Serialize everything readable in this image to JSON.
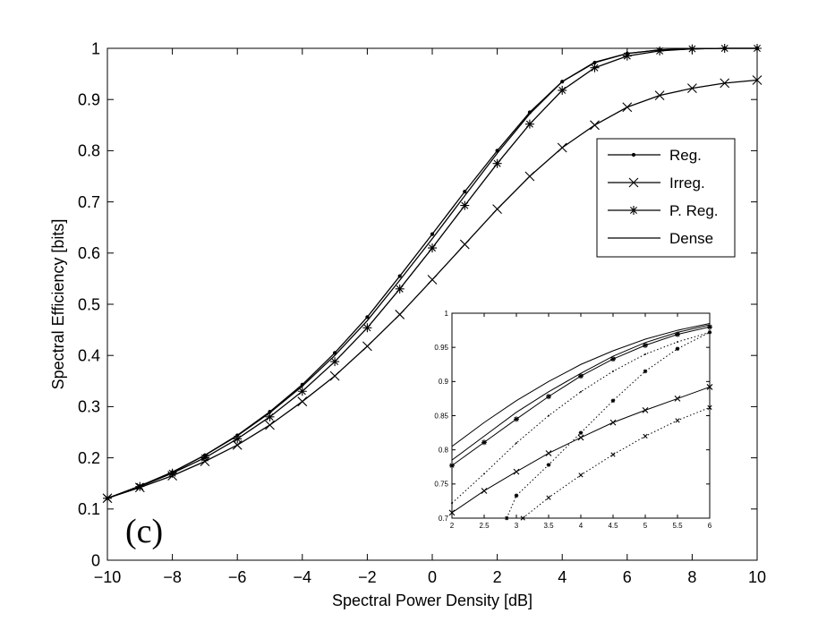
{
  "chart_data": [
    {
      "type": "line",
      "xlabel": "Spectral Power Density [dB]",
      "ylabel": "Spectral Efficiency [bits]",
      "xlim": [
        -10,
        10
      ],
      "ylim": [
        0,
        1
      ],
      "xticks": [
        -10,
        -8,
        -6,
        -4,
        -2,
        0,
        2,
        4,
        6,
        8,
        10
      ],
      "yticks": [
        0,
        0.1,
        0.2,
        0.3,
        0.4,
        0.5,
        0.6,
        0.7,
        0.8,
        0.9,
        1
      ],
      "xtick_labels": [
        "−10",
        "−8",
        "−6",
        "−4",
        "−2",
        "0",
        "2",
        "4",
        "6",
        "8",
        "10"
      ],
      "ytick_labels": [
        "0",
        "0.1",
        "0.2",
        "0.3",
        "0.4",
        "0.5",
        "0.6",
        "0.7",
        "0.8",
        "0.9",
        "1"
      ],
      "grid": false,
      "legend_position": "top-right",
      "annotation": "(c)",
      "series": [
        {
          "name": "Reg.",
          "marker": "dot",
          "x": [
            -10,
            -9,
            -8,
            -7,
            -6,
            -5,
            -4,
            -3,
            -2,
            -1,
            0,
            1,
            2,
            3,
            4,
            5,
            6,
            7,
            8,
            9,
            10
          ],
          "y": [
            0.121,
            0.145,
            0.172,
            0.205,
            0.244,
            0.29,
            0.343,
            0.405,
            0.475,
            0.555,
            0.637,
            0.72,
            0.8,
            0.875,
            0.935,
            0.972,
            0.99,
            0.997,
            0.999,
            1.0,
            1.0
          ]
        },
        {
          "name": "Irreg.",
          "marker": "x",
          "x": [
            -10,
            -9,
            -8,
            -7,
            -6,
            -5,
            -4,
            -3,
            -2,
            -1,
            0,
            1,
            2,
            3,
            4,
            5,
            6,
            7,
            8,
            9,
            10
          ],
          "y": [
            0.121,
            0.142,
            0.165,
            0.193,
            0.225,
            0.264,
            0.31,
            0.36,
            0.418,
            0.48,
            0.548,
            0.617,
            0.686,
            0.75,
            0.806,
            0.85,
            0.885,
            0.908,
            0.922,
            0.932,
            0.938
          ]
        },
        {
          "name": "P. Reg.",
          "marker": "star",
          "x": [
            -10,
            -9,
            -8,
            -7,
            -6,
            -5,
            -4,
            -3,
            -2,
            -1,
            0,
            1,
            2,
            3,
            4,
            5,
            6,
            7,
            8,
            9,
            10
          ],
          "y": [
            0.121,
            0.144,
            0.17,
            0.2,
            0.237,
            0.28,
            0.33,
            0.388,
            0.454,
            0.53,
            0.61,
            0.693,
            0.775,
            0.852,
            0.918,
            0.962,
            0.985,
            0.995,
            0.999,
            1.0,
            1.0
          ]
        },
        {
          "name": "Dense",
          "marker": "none",
          "x": [
            -10,
            -9,
            -8,
            -7,
            -6,
            -5,
            -4,
            -3,
            -2,
            -1,
            0,
            1,
            2,
            3,
            4,
            5,
            6,
            7,
            8,
            9,
            10
          ],
          "y": [
            0.121,
            0.145,
            0.172,
            0.205,
            0.243,
            0.288,
            0.34,
            0.4,
            0.468,
            0.547,
            0.628,
            0.712,
            0.795,
            0.872,
            0.935,
            0.973,
            0.99,
            0.997,
            0.999,
            1.0,
            1.0
          ]
        }
      ]
    },
    {
      "type": "line",
      "xlim": [
        2,
        6
      ],
      "ylim": [
        0.7,
        1
      ],
      "xticks": [
        2,
        2.5,
        3,
        3.5,
        4,
        4.5,
        5,
        5.5,
        6
      ],
      "yticks": [
        0.7,
        0.75,
        0.8,
        0.85,
        0.9,
        0.95,
        1
      ],
      "xtick_labels": [
        "2",
        "2.5",
        "3",
        "3.5",
        "4",
        "4.5",
        "5",
        "5.5",
        "6"
      ],
      "ytick_labels": [
        "0.7",
        "0.75",
        "0.8",
        "0.85",
        "0.9",
        "0.95",
        "1"
      ],
      "grid": false,
      "series": [
        {
          "name": "Dense",
          "style": "solid",
          "marker": "none",
          "x": [
            2,
            2.5,
            3,
            3.5,
            4,
            4.5,
            5,
            5.5,
            6
          ],
          "y": [
            0.805,
            0.84,
            0.872,
            0.9,
            0.925,
            0.945,
            0.962,
            0.975,
            0.985
          ]
        },
        {
          "name": "Reg.",
          "style": "solid",
          "marker": "none",
          "x": [
            2,
            2.5,
            3,
            3.5,
            4,
            4.5,
            5,
            5.5,
            6
          ],
          "y": [
            0.785,
            0.82,
            0.855,
            0.885,
            0.912,
            0.937,
            0.957,
            0.972,
            0.983
          ]
        },
        {
          "name": "P. Reg.",
          "style": "solid",
          "marker": "star",
          "x": [
            2,
            2.5,
            3,
            3.5,
            4,
            4.5,
            5,
            5.5,
            6
          ],
          "y": [
            0.777,
            0.811,
            0.845,
            0.878,
            0.908,
            0.933,
            0.953,
            0.969,
            0.98
          ]
        },
        {
          "name": "Irreg.",
          "style": "solid",
          "marker": "x",
          "x": [
            2,
            2.5,
            3,
            3.5,
            4,
            4.5,
            5,
            5.5,
            6
          ],
          "y": [
            0.708,
            0.74,
            0.768,
            0.795,
            0.818,
            0.84,
            0.858,
            0.875,
            0.892
          ]
        },
        {
          "name": "Reg. (dotted)",
          "style": "dotted",
          "marker": "dot",
          "x": [
            2,
            2.5,
            3,
            3.5,
            4,
            4.5,
            5,
            5.5,
            6
          ],
          "y": [
            0.722,
            0.765,
            0.81,
            0.85,
            0.885,
            0.915,
            0.94,
            0.958,
            0.972
          ]
        },
        {
          "name": "P. Reg. (dotted)",
          "style": "dotted",
          "marker": "star",
          "x": [
            2.85,
            3,
            3.5,
            4,
            4.5,
            5,
            5.5,
            6
          ],
          "y": [
            0.7,
            0.733,
            0.778,
            0.825,
            0.872,
            0.915,
            0.948,
            0.972
          ]
        },
        {
          "name": "Irreg. (dotted)",
          "style": "dotted",
          "marker": "x",
          "x": [
            3.1,
            3.5,
            4,
            4.5,
            5,
            5.5,
            6
          ],
          "y": [
            0.7,
            0.73,
            0.763,
            0.793,
            0.82,
            0.843,
            0.862
          ]
        }
      ]
    }
  ]
}
